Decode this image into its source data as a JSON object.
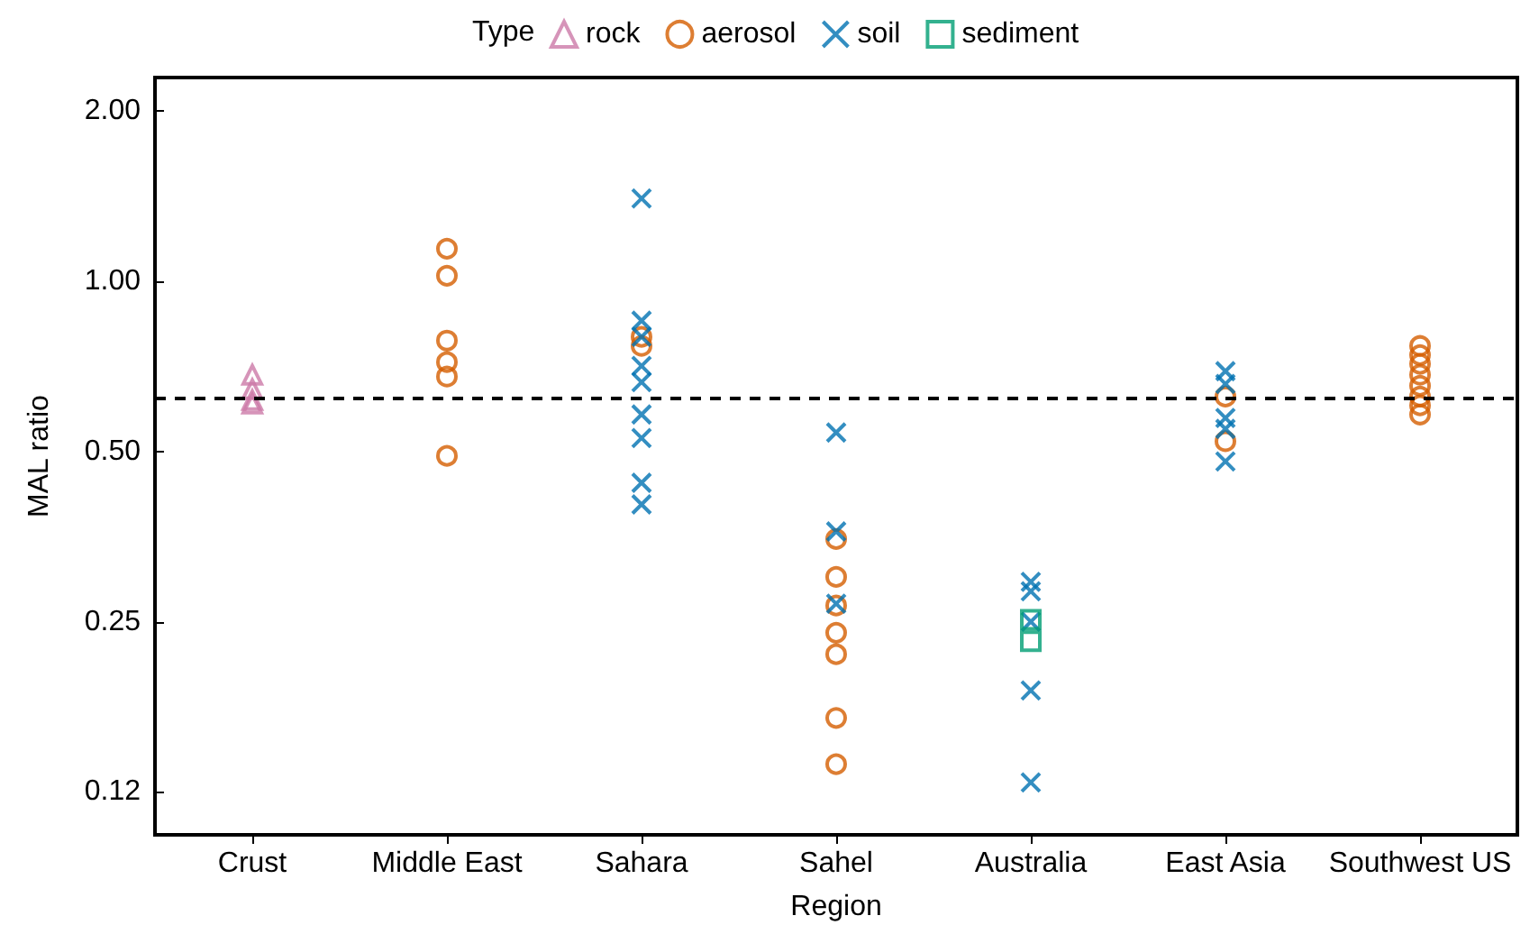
{
  "chart_data": {
    "type": "scatter",
    "xlabel": "Region",
    "ylabel": "MAL ratio",
    "legend_title": "Type",
    "legend": "top",
    "categories": [
      "Crust",
      "Middle East",
      "Sahara",
      "Sahel",
      "Australia",
      "East Asia",
      "Southwest US"
    ],
    "log": "y",
    "ylim": [
      0.105,
      2.29
    ],
    "yticks": [
      {
        "value": 0.125,
        "label": "0.12"
      },
      0.25,
      {
        "value": 0.5,
        "label": "0.50"
      },
      {
        "value": 1,
        "label": "1.00"
      },
      {
        "value": 2,
        "label": "2.00"
      }
    ],
    "ref_lines": [
      {
        "axis": "y",
        "value": 0.62,
        "label": null,
        "color": "#000000",
        "line_style": "dashed"
      }
    ],
    "series": [
      {
        "name": "rock",
        "color": "#cc79a7",
        "marker": "triangle",
        "x": [
          "Crust",
          "Crust",
          "Crust",
          "Crust"
        ],
        "values": [
          0.683,
          0.644,
          0.616,
          0.607
        ]
      },
      {
        "name": "aerosol",
        "color": "#d55e00",
        "marker": "circle",
        "x": [
          "Middle East",
          "Middle East",
          "Middle East",
          "Middle East",
          "Middle East",
          "Middle East",
          "Sahara",
          "Sahara",
          "Sahel",
          "Sahel",
          "Sahel",
          "Sahel",
          "Sahel",
          "Sahel",
          "Sahel",
          "East Asia",
          "East Asia",
          "Southwest US",
          "Southwest US",
          "Southwest US",
          "Southwest US",
          "Southwest US",
          "Southwest US",
          "Southwest US",
          "Southwest US"
        ],
        "values": [
          1.141,
          1.022,
          0.785,
          0.719,
          0.678,
          0.491,
          0.797,
          0.768,
          0.35,
          0.3,
          0.267,
          0.239,
          0.219,
          0.169,
          0.14,
          0.625,
          0.521,
          0.768,
          0.74,
          0.714,
          0.683,
          0.653,
          0.625,
          0.603,
          0.581
        ]
      },
      {
        "name": "soil",
        "color": "#0072b2",
        "marker": "cross",
        "x": [
          "Sahara",
          "Sahara",
          "Sahara",
          "Sahara",
          "Sahara",
          "Sahara",
          "Sahara",
          "Sahara",
          "Sahara",
          "Sahel",
          "Sahel",
          "Sahel",
          "Australia",
          "Australia",
          "Australia",
          "Australia",
          "Australia",
          "East Asia",
          "East Asia",
          "East Asia",
          "East Asia",
          "East Asia"
        ],
        "values": [
          1.4,
          0.851,
          0.797,
          0.708,
          0.663,
          0.581,
          0.528,
          0.44,
          0.403,
          0.54,
          0.361,
          0.269,
          0.294,
          0.283,
          0.25,
          0.189,
          0.13,
          0.693,
          0.658,
          0.573,
          0.548,
          0.48
        ]
      },
      {
        "name": "sediment",
        "color": "#009e73",
        "marker": "square",
        "x": [
          "Australia",
          "Australia"
        ],
        "values": [
          0.252,
          0.231
        ]
      }
    ]
  }
}
